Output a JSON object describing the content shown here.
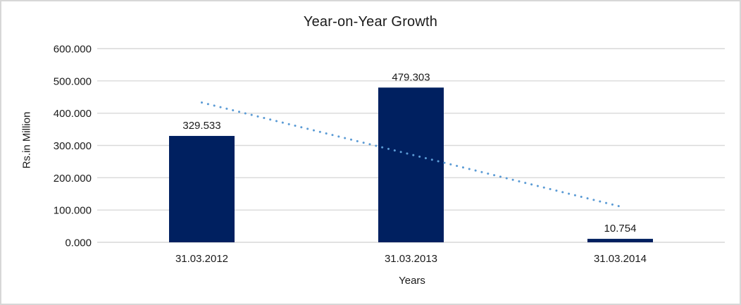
{
  "chart_data": {
    "type": "bar",
    "title": "Year-on-Year Growth",
    "categories": [
      "31.03.2012",
      "31.03.2013",
      "31.03.2014"
    ],
    "values": [
      329.533,
      479.303,
      10.754
    ],
    "value_labels": [
      "329.533",
      "479.303",
      "10.754"
    ],
    "xlabel": "Years",
    "ylabel": "Rs.in Million",
    "ylim": [
      0,
      600
    ],
    "ytick_step": 100,
    "ytick_labels": [
      "0.000",
      "100.000",
      "200.000",
      "300.000",
      "400.000",
      "500.000",
      "600.000"
    ],
    "grid": true,
    "legend_position": "none",
    "trendline": {
      "style": "dotted",
      "start_value": 433,
      "end_value": 111
    }
  },
  "colors": {
    "bar": "#002060",
    "trendline": "#5B9BD5",
    "gridline": "#d9d9d9",
    "text": "#1a1a1a",
    "frame_border": "#d7d7d7",
    "background": "#ffffff"
  }
}
